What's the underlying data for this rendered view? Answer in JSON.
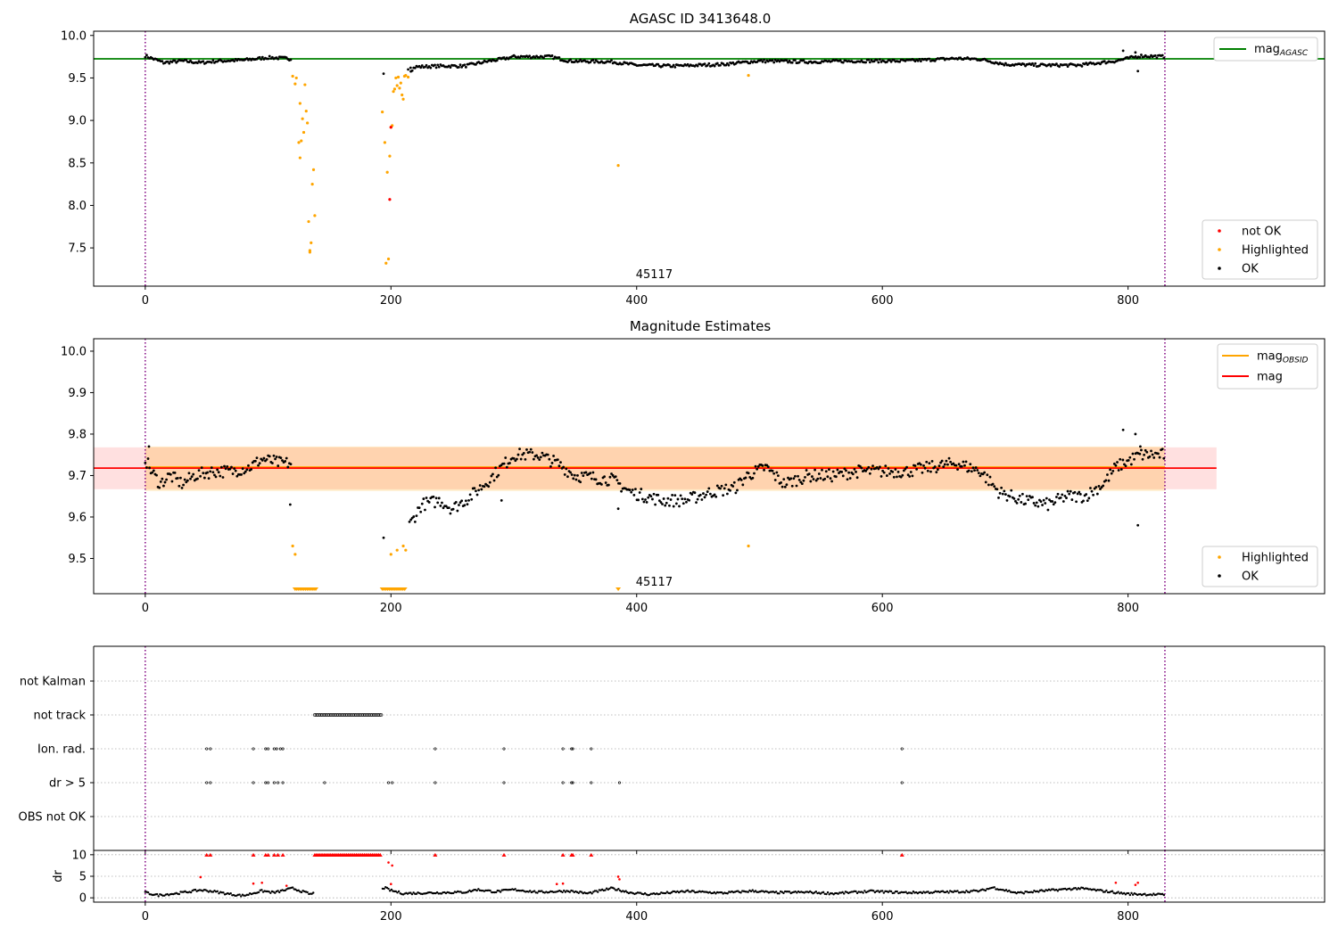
{
  "chart_data": [
    {
      "type": "scatter",
      "title": "AGASC ID 3413648.0",
      "xlim": [
        -42,
        960
      ],
      "ylim": [
        7.05,
        10.05
      ],
      "xticks": [
        0,
        200,
        400,
        600,
        800
      ],
      "yticks": [
        7.5,
        8.0,
        8.5,
        9.0,
        9.5,
        10.0
      ],
      "obsid_label": "45117",
      "obsid_label_x": 400,
      "vlines": [
        0,
        830
      ],
      "hline": {
        "name": "mag_AGASC",
        "y": 9.725,
        "color": "#008000"
      },
      "legend_line": {
        "text": "mag",
        "sub": "AGASC"
      },
      "legend_points": [
        "not OK",
        "Highlighted",
        "OK"
      ],
      "highlighted": [
        [
          120,
          9.52
        ],
        [
          122,
          9.43
        ],
        [
          123,
          9.5
        ],
        [
          125,
          8.74
        ],
        [
          126,
          8.56
        ],
        [
          126,
          9.2
        ],
        [
          127,
          8.76
        ],
        [
          128,
          9.02
        ],
        [
          129,
          8.86
        ],
        [
          130,
          9.42
        ],
        [
          131,
          9.11
        ],
        [
          132,
          8.97
        ],
        [
          133,
          7.81
        ],
        [
          134,
          7.47
        ],
        [
          134,
          7.45
        ],
        [
          135,
          7.56
        ],
        [
          136,
          8.25
        ],
        [
          137,
          8.42
        ],
        [
          138,
          7.88
        ],
        [
          193,
          9.1
        ],
        [
          195,
          8.74
        ],
        [
          196,
          7.32
        ],
        [
          197,
          8.39
        ],
        [
          198,
          7.37
        ],
        [
          199,
          8.58
        ],
        [
          200,
          8.92
        ],
        [
          201,
          8.94
        ],
        [
          202,
          9.34
        ],
        [
          203,
          9.37
        ],
        [
          204,
          9.5
        ],
        [
          205,
          9.41
        ],
        [
          206,
          9.51
        ],
        [
          207,
          9.38
        ],
        [
          208,
          9.44
        ],
        [
          209,
          9.3
        ],
        [
          210,
          9.25
        ],
        [
          211,
          9.52
        ],
        [
          212,
          9.53
        ],
        [
          214,
          9.51
        ],
        [
          385,
          8.47
        ],
        [
          491,
          9.53
        ]
      ],
      "not_ok": [
        [
          199,
          8.07
        ],
        [
          200,
          8.92
        ]
      ],
      "ok_segments": [
        [
          0,
          9.76
        ],
        [
          15,
          9.68
        ],
        [
          30,
          9.7
        ],
        [
          45,
          9.68
        ],
        [
          60,
          9.7
        ],
        [
          80,
          9.71
        ],
        [
          100,
          9.74
        ],
        [
          115,
          9.73
        ],
        [
          120,
          9.72
        ],
        [
          120,
          9.52
        ],
        [
          194,
          9.55
        ],
        [
          200,
          9.48
        ],
        [
          215,
          9.58
        ],
        [
          220,
          9.63
        ],
        [
          240,
          9.64
        ],
        [
          260,
          9.64
        ],
        [
          280,
          9.7
        ],
        [
          290,
          9.72
        ],
        [
          300,
          9.75
        ],
        [
          330,
          9.75
        ],
        [
          345,
          9.7
        ],
        [
          380,
          9.69
        ],
        [
          400,
          9.65
        ],
        [
          430,
          9.64
        ],
        [
          470,
          9.66
        ],
        [
          500,
          9.7
        ],
        [
          540,
          9.69
        ],
        [
          580,
          9.7
        ],
        [
          620,
          9.7
        ],
        [
          660,
          9.73
        ],
        [
          680,
          9.72
        ],
        [
          700,
          9.66
        ],
        [
          730,
          9.65
        ],
        [
          760,
          9.65
        ],
        [
          790,
          9.7
        ],
        [
          810,
          9.76
        ],
        [
          830,
          9.75
        ]
      ],
      "ok_extra": [
        [
          796,
          9.82
        ],
        [
          806,
          9.8
        ],
        [
          808,
          9.58
        ]
      ]
    },
    {
      "type": "scatter",
      "title": "Magnitude Estimates",
      "xlim": [
        -42,
        960
      ],
      "ylim": [
        9.415,
        10.03
      ],
      "xticks": [
        0,
        200,
        400,
        600,
        800
      ],
      "yticks": [
        9.5,
        9.6,
        9.7,
        9.8,
        9.9,
        10.0
      ],
      "obsid_label": "45117",
      "obsid_label_x": 400,
      "vlines": [
        0,
        830
      ],
      "mag": 9.718,
      "mag_obsid": 9.72,
      "band_obsid": [
        9.663,
        9.77
      ],
      "band_mag": [
        9.667,
        9.768
      ],
      "band_xrange": [
        -42,
        872
      ],
      "legend_lines": [
        {
          "text": "mag",
          "sub": "OBSID",
          "color": "#ffa500"
        },
        {
          "text": "mag",
          "sub": "",
          "color": "#ff0000"
        }
      ],
      "legend_points": [
        "Highlighted",
        "OK"
      ],
      "highlighted": [
        [
          120,
          9.53
        ],
        [
          122,
          9.51
        ],
        [
          200,
          9.51
        ],
        [
          205,
          9.52
        ],
        [
          210,
          9.53
        ],
        [
          212,
          9.52
        ],
        [
          491,
          9.53
        ]
      ],
      "clipped_highlighted": [
        [
          122,
          140
        ],
        [
          193,
          212
        ],
        [
          385,
          386
        ]
      ],
      "ok_curve": [
        [
          0,
          9.74
        ],
        [
          5,
          9.71
        ],
        [
          12,
          9.68
        ],
        [
          20,
          9.7
        ],
        [
          30,
          9.68
        ],
        [
          40,
          9.7
        ],
        [
          55,
          9.71
        ],
        [
          70,
          9.71
        ],
        [
          85,
          9.72
        ],
        [
          95,
          9.74
        ],
        [
          110,
          9.73
        ],
        [
          118,
          9.73
        ],
        [
          215,
          9.58
        ],
        [
          225,
          9.63
        ],
        [
          240,
          9.64
        ],
        [
          250,
          9.62
        ],
        [
          265,
          9.65
        ],
        [
          280,
          9.69
        ],
        [
          290,
          9.72
        ],
        [
          300,
          9.75
        ],
        [
          320,
          9.75
        ],
        [
          335,
          9.73
        ],
        [
          350,
          9.7
        ],
        [
          380,
          9.69
        ],
        [
          395,
          9.66
        ],
        [
          420,
          9.64
        ],
        [
          440,
          9.64
        ],
        [
          460,
          9.66
        ],
        [
          480,
          9.67
        ],
        [
          490,
          9.7
        ],
        [
          505,
          9.72
        ],
        [
          520,
          9.68
        ],
        [
          540,
          9.7
        ],
        [
          560,
          9.7
        ],
        [
          580,
          9.71
        ],
        [
          600,
          9.71
        ],
        [
          620,
          9.71
        ],
        [
          640,
          9.72
        ],
        [
          660,
          9.73
        ],
        [
          680,
          9.71
        ],
        [
          695,
          9.66
        ],
        [
          715,
          9.64
        ],
        [
          735,
          9.63
        ],
        [
          750,
          9.65
        ],
        [
          765,
          9.65
        ],
        [
          780,
          9.68
        ],
        [
          790,
          9.72
        ],
        [
          810,
          9.75
        ],
        [
          830,
          9.75
        ]
      ],
      "ok_extra": [
        [
          3,
          9.77
        ],
        [
          118,
          9.63
        ],
        [
          194,
          9.55
        ],
        [
          290,
          9.64
        ],
        [
          385,
          9.62
        ],
        [
          796,
          9.81
        ],
        [
          806,
          9.8
        ],
        [
          808,
          9.58
        ],
        [
          810,
          9.77
        ]
      ]
    },
    {
      "type": "scatter",
      "categories": [
        "not Kalman",
        "not track",
        "Ion. rad.",
        "dr > 5",
        "OBS not OK"
      ],
      "xlim": [
        -42,
        960
      ],
      "vlines": [
        0,
        830
      ],
      "not_track_range": [
        138,
        192
      ],
      "ion_rad": [
        50,
        53,
        88,
        98,
        100,
        105,
        107,
        110,
        112,
        236,
        292,
        340,
        347,
        348,
        363,
        616
      ],
      "dr_gt5": [
        50,
        53,
        88,
        98,
        100,
        105,
        108,
        112,
        146,
        198,
        201,
        236,
        292,
        340,
        347,
        348,
        363,
        386,
        616
      ]
    },
    {
      "type": "scatter",
      "ylabel": "dr",
      "xlim": [
        -42,
        960
      ],
      "ylim": [
        -1,
        11
      ],
      "xticks": [
        0,
        200,
        400,
        600,
        800
      ],
      "yticks": [
        0,
        5,
        10
      ],
      "vlines": [
        0,
        830
      ],
      "dr_hits": [
        50,
        53,
        88,
        98,
        100,
        105,
        108,
        112,
        236,
        292,
        340,
        347,
        348,
        363,
        616
      ],
      "dr_hit_range": [
        138,
        192
      ],
      "red_points": [
        [
          45,
          4.8
        ],
        [
          88,
          3.3
        ],
        [
          95,
          3.5
        ],
        [
          115,
          2.8
        ],
        [
          198,
          8.2
        ],
        [
          201,
          7.5
        ],
        [
          200,
          3.2
        ],
        [
          335,
          3.2
        ],
        [
          340,
          3.3
        ],
        [
          385,
          4.9
        ],
        [
          386,
          4.3
        ],
        [
          790,
          3.5
        ],
        [
          806,
          3.0
        ],
        [
          808,
          3.5
        ]
      ],
      "curve": [
        [
          0,
          1.2
        ],
        [
          10,
          0.6
        ],
        [
          25,
          1.0
        ],
        [
          45,
          1.8
        ],
        [
          55,
          1.5
        ],
        [
          70,
          0.8
        ],
        [
          80,
          0.5
        ],
        [
          95,
          1.6
        ],
        [
          105,
          1.2
        ],
        [
          120,
          2.2
        ],
        [
          135,
          0.8
        ],
        [
          140,
          1.4
        ],
        [
          195,
          2.3
        ],
        [
          200,
          1.7
        ],
        [
          210,
          1.0
        ],
        [
          240,
          1.2
        ],
        [
          260,
          1.3
        ],
        [
          270,
          1.9
        ],
        [
          285,
          1.4
        ],
        [
          300,
          1.9
        ],
        [
          320,
          1.3
        ],
        [
          345,
          1.6
        ],
        [
          360,
          1.0
        ],
        [
          380,
          2.2
        ],
        [
          395,
          1.2
        ],
        [
          410,
          0.8
        ],
        [
          440,
          1.5
        ],
        [
          470,
          1.1
        ],
        [
          495,
          1.6
        ],
        [
          510,
          1.2
        ],
        [
          540,
          1.3
        ],
        [
          560,
          1.0
        ],
        [
          590,
          1.5
        ],
        [
          620,
          1.2
        ],
        [
          660,
          1.4
        ],
        [
          680,
          1.6
        ],
        [
          690,
          2.4
        ],
        [
          710,
          1.1
        ],
        [
          730,
          1.6
        ],
        [
          760,
          2.2
        ],
        [
          770,
          1.9
        ],
        [
          800,
          0.9
        ],
        [
          830,
          0.7
        ]
      ]
    }
  ]
}
